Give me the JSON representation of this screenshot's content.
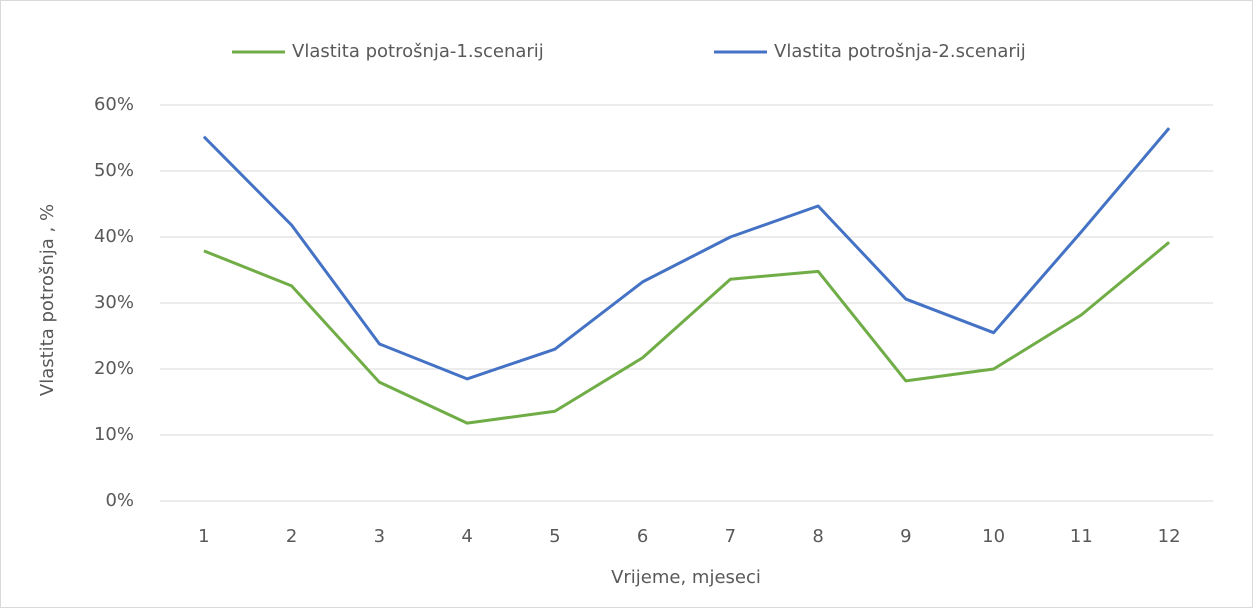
{
  "chart_data": {
    "type": "line",
    "x_label": "Vrijeme, mjeseci",
    "y_label": "Vlastita potrošnja , %",
    "categories": [
      "1",
      "2",
      "3",
      "4",
      "5",
      "6",
      "7",
      "8",
      "9",
      "10",
      "11",
      "12"
    ],
    "series": [
      {
        "name": "Vlastita potrošnja-1.scenarij",
        "color": "#70ad47",
        "values": [
          37.9,
          32.6,
          18.0,
          11.8,
          13.6,
          21.7,
          33.6,
          34.8,
          18.2,
          20.0,
          28.2,
          39.2
        ]
      },
      {
        "name": "Vlastita potrošnja-2.scenarij",
        "color": "#4472c4",
        "values": [
          55.2,
          41.8,
          23.8,
          18.5,
          23.0,
          33.2,
          40.0,
          44.7,
          30.6,
          25.5,
          40.8,
          56.5
        ]
      }
    ],
    "ylim": [
      0,
      60
    ],
    "yticks": [
      {
        "value": 0,
        "label": "0%"
      },
      {
        "value": 10,
        "label": "10%"
      },
      {
        "value": 20,
        "label": "20%"
      },
      {
        "value": 30,
        "label": "30%"
      },
      {
        "value": 40,
        "label": "40%"
      },
      {
        "value": 50,
        "label": "50%"
      },
      {
        "value": 60,
        "label": "60%"
      }
    ],
    "grid": true,
    "legend": "top"
  }
}
